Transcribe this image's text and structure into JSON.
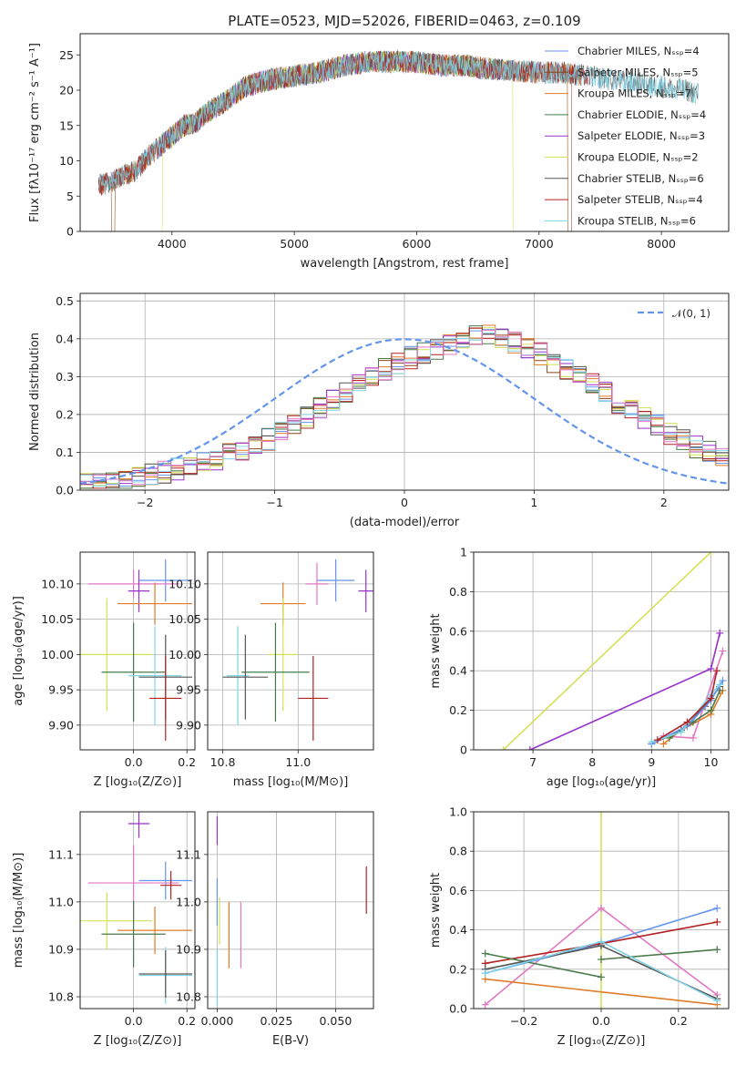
{
  "chart_data": [
    {
      "type": "line",
      "title": "PLATE=0523, MJD=52026, FIBERID=0463, z=0.109",
      "xlabel": "wavelength [Angstrom, rest frame]",
      "ylabel": "Flux [fλ10⁻¹⁷ erg cm⁻² s⁻¹ A⁻¹]",
      "xlim": [
        3250,
        8550
      ],
      "ylim": [
        0,
        28
      ],
      "xticks": [
        4000,
        5000,
        6000,
        7000,
        8000
      ],
      "yticks": [
        0,
        5,
        10,
        15,
        20,
        25
      ],
      "grid": false,
      "legend_position": "upper right",
      "continuum": {
        "x": [
          3400,
          3500,
          3600,
          3700,
          3800,
          3900,
          4000,
          4100,
          4200,
          4300,
          4400,
          4600,
          4800,
          5000,
          5200,
          5400,
          5600,
          5800,
          6000,
          6200,
          6400,
          6600,
          6800,
          7000,
          7200,
          7400,
          7600,
          7800,
          8000,
          8200,
          8300
        ],
        "y": [
          6.5,
          7.0,
          8.0,
          8.5,
          10.5,
          12.0,
          13.5,
          15.0,
          15.5,
          17.0,
          18.0,
          20.5,
          21.5,
          22.0,
          22.5,
          23.5,
          24.0,
          24.0,
          24.0,
          23.5,
          23.5,
          23.0,
          22.8,
          22.5,
          22.5,
          22.0,
          21.5,
          21.0,
          20.5,
          20.0,
          19.5
        ]
      },
      "series": [
        {
          "name": "Chabrier MILES, N_SSP=4",
          "color": "#6495ed",
          "xmin": 3400,
          "xmax": 7350,
          "dips": []
        },
        {
          "name": "Salpeter MILES, N_SSP=5",
          "color": "#8b4513",
          "xmin": 3400,
          "xmax": 7350,
          "dips": [
            {
              "x": 3520,
              "width": 30
            },
            {
              "x": 7250,
              "width": 30
            }
          ]
        },
        {
          "name": "Kroupa MILES, N_SSP=7",
          "color": "#e07b28",
          "xmin": 3400,
          "xmax": 7350,
          "dips": []
        },
        {
          "name": "Chabrier ELODIE, N_SSP=4",
          "color": "#4a7a4a",
          "xmin": 3900,
          "xmax": 6800,
          "dips": []
        },
        {
          "name": "Salpeter ELODIE, N_SSP=3",
          "color": "#9932cc",
          "xmin": 3900,
          "xmax": 6800,
          "dips": []
        },
        {
          "name": "Kroupa ELODIE, N_SSP=2",
          "color": "#d4e157",
          "xmin": 3900,
          "xmax": 6800,
          "dips": [
            {
              "x": 3910,
              "width": 25
            },
            {
              "x": 6800,
              "width": 25
            }
          ]
        },
        {
          "name": "Chabrier STELIB, N_SSP=6",
          "color": "#555555",
          "xmin": 3400,
          "xmax": 8300,
          "dips": []
        },
        {
          "name": "Salpeter STELIB, N_SSP=4",
          "color": "#b22222",
          "xmin": 3400,
          "xmax": 7400,
          "dips": [
            {
              "x": 7420,
              "width": 25
            }
          ]
        },
        {
          "name": "Kroupa STELIB, N_SSP=6",
          "color": "#7fd4e6",
          "xmin": 3400,
          "xmax": 8300,
          "dips": []
        }
      ]
    },
    {
      "type": "step",
      "xlabel": "(data-model)/error",
      "ylabel": "Normed distribution",
      "xlim": [
        -2.5,
        2.5
      ],
      "ylim": [
        0,
        0.52
      ],
      "xticks": [
        -2,
        -1,
        0,
        1,
        2
      ],
      "yticks": [
        0.0,
        0.1,
        0.2,
        0.3,
        0.4,
        0.5
      ],
      "grid": true,
      "reference": {
        "name": "N(0,1)",
        "color": "#6495ed"
      },
      "bin_width": 0.1,
      "bin_start": -2.5,
      "base_counts": [
        0.02,
        0.025,
        0.028,
        0.032,
        0.036,
        0.041,
        0.048,
        0.055,
        0.062,
        0.07,
        0.082,
        0.095,
        0.108,
        0.12,
        0.135,
        0.155,
        0.17,
        0.19,
        0.215,
        0.24,
        0.26,
        0.28,
        0.3,
        0.32,
        0.335,
        0.35,
        0.36,
        0.375,
        0.385,
        0.395,
        0.405,
        0.41,
        0.4,
        0.39,
        0.375,
        0.36,
        0.34,
        0.32,
        0.3,
        0.28,
        0.255,
        0.23,
        0.21,
        0.19,
        0.17,
        0.15,
        0.13,
        0.115,
        0.1,
        0.088
      ],
      "series_colors": [
        "#6495ed",
        "#8b4513",
        "#e07b28",
        "#4a7a4a",
        "#9932cc",
        "#d4e157",
        "#555555",
        "#b22222",
        "#7fd4e6",
        "#e377c2"
      ]
    },
    {
      "type": "errorbar",
      "xlabel": "Z [log₁₀(Z/Z⊙)]",
      "ylabel": "age  [log₁₀(age/yr)]",
      "xlim": [
        -0.2,
        0.23
      ],
      "ylim": [
        9.865,
        10.145
      ],
      "xticks": [
        0.0,
        0.2
      ],
      "yticks": [
        9.9,
        9.95,
        10.0,
        10.05,
        10.1
      ],
      "grid": true,
      "points": [
        {
          "x": 0.12,
          "y": 10.105,
          "ex": 0.1,
          "ey": 0.03,
          "color": "#6495ed"
        },
        {
          "x": 0.0,
          "y": 10.1,
          "ex": 0.17,
          "ey": 0.02,
          "color": "#e377c2"
        },
        {
          "x": 0.02,
          "y": 10.09,
          "ex": 0.04,
          "ey": 0.03,
          "color": "#9932cc"
        },
        {
          "x": 0.08,
          "y": 10.072,
          "ex": 0.14,
          "ey": 0.03,
          "color": "#e07b28"
        },
        {
          "x": -0.1,
          "y": 10.0,
          "ex": 0.17,
          "ey": 0.08,
          "color": "#d4e157"
        },
        {
          "x": 0.0,
          "y": 9.975,
          "ex": 0.12,
          "ey": 0.07,
          "color": "#4a7a4a"
        },
        {
          "x": 0.08,
          "y": 9.97,
          "ex": 0.1,
          "ey": 0.07,
          "color": "#7fd4e6"
        },
        {
          "x": 0.12,
          "y": 9.968,
          "ex": 0.1,
          "ey": 0.06,
          "color": "#555555"
        },
        {
          "x": 0.12,
          "y": 9.938,
          "ex": 0.06,
          "ey": 0.06,
          "color": "#b22222"
        }
      ]
    },
    {
      "type": "errorbar",
      "xlabel": "mass [log₁₀(M/M⊙)]",
      "ylabel": "",
      "xlim": [
        10.76,
        11.2
      ],
      "ylim": [
        9.865,
        10.145
      ],
      "xticks": [
        10.8,
        11.0
      ],
      "yticks": [
        9.9,
        9.95,
        10.0,
        10.05,
        10.1
      ],
      "grid": true,
      "points": [
        {
          "x": 11.1,
          "y": 10.105,
          "ex": 0.05,
          "ey": 0.03,
          "color": "#6495ed"
        },
        {
          "x": 11.18,
          "y": 10.09,
          "ex": 0.02,
          "ey": 0.03,
          "color": "#9932cc"
        },
        {
          "x": 11.05,
          "y": 10.1,
          "ex": 0.03,
          "ey": 0.03,
          "color": "#e377c2"
        },
        {
          "x": 10.96,
          "y": 10.072,
          "ex": 0.06,
          "ey": 0.03,
          "color": "#e07b28"
        },
        {
          "x": 10.96,
          "y": 10.0,
          "ex": 0.04,
          "ey": 0.08,
          "color": "#d4e157"
        },
        {
          "x": 10.94,
          "y": 9.975,
          "ex": 0.09,
          "ey": 0.07,
          "color": "#4a7a4a"
        },
        {
          "x": 10.84,
          "y": 9.97,
          "ex": 0.03,
          "ey": 0.07,
          "color": "#7fd4e6"
        },
        {
          "x": 10.86,
          "y": 9.968,
          "ex": 0.06,
          "ey": 0.06,
          "color": "#555555"
        },
        {
          "x": 11.04,
          "y": 9.938,
          "ex": 0.04,
          "ey": 0.06,
          "color": "#b22222"
        }
      ]
    },
    {
      "type": "line",
      "xlabel": "age  [log₁₀(age/yr)]",
      "ylabel": "mass weight",
      "xlim": [
        6.0,
        10.3
      ],
      "ylim": [
        0.0,
        1.0
      ],
      "xticks": [
        7,
        8,
        9,
        10
      ],
      "yticks": [
        0.0,
        0.2,
        0.4,
        0.6,
        0.8,
        1.0
      ],
      "grid": true,
      "series": [
        {
          "color": "#d4e157",
          "x": [
            6.5,
            10.0
          ],
          "y": [
            0.0,
            1.0
          ]
        },
        {
          "color": "#9932cc",
          "x": [
            6.95,
            10.0,
            10.15
          ],
          "y": [
            0.0,
            0.41,
            0.59
          ]
        },
        {
          "color": "#e377c2",
          "x": [
            9.2,
            9.7,
            10.2
          ],
          "y": [
            0.07,
            0.06,
            0.5
          ]
        },
        {
          "color": "#e07b28",
          "x": [
            9.2,
            9.5,
            10.0,
            10.2
          ],
          "y": [
            0.03,
            0.1,
            0.18,
            0.3
          ]
        },
        {
          "color": "#4a7a4a",
          "x": [
            9.3,
            9.7,
            10.0,
            10.15
          ],
          "y": [
            0.06,
            0.14,
            0.2,
            0.3
          ]
        },
        {
          "color": "#555555",
          "x": [
            9.0,
            9.5,
            9.9,
            10.15
          ],
          "y": [
            0.03,
            0.1,
            0.22,
            0.32
          ]
        },
        {
          "color": "#6495ed",
          "x": [
            9.0,
            9.6,
            10.0,
            10.2
          ],
          "y": [
            0.03,
            0.12,
            0.25,
            0.35
          ]
        },
        {
          "color": "#7fd4e6",
          "x": [
            9.0,
            9.5,
            10.0,
            10.15
          ],
          "y": [
            0.04,
            0.09,
            0.28,
            0.33
          ]
        },
        {
          "color": "#b22222",
          "x": [
            9.1,
            9.6,
            10.0,
            10.1
          ],
          "y": [
            0.05,
            0.14,
            0.26,
            0.4
          ]
        }
      ]
    },
    {
      "type": "errorbar",
      "xlabel": "Z [log₁₀(Z/Z⊙)]",
      "ylabel": "mass [log₁₀(M/M⊙)]",
      "xlim": [
        -0.2,
        0.23
      ],
      "ylim": [
        10.775,
        11.19
      ],
      "xticks": [
        0.0,
        0.2
      ],
      "yticks": [
        10.8,
        10.9,
        11.0,
        11.1
      ],
      "grid": true,
      "points": [
        {
          "x": 0.02,
          "y": 11.165,
          "ex": 0.04,
          "ey": 0.03,
          "color": "#9932cc"
        },
        {
          "x": 0.12,
          "y": 11.045,
          "ex": 0.1,
          "ey": 0.04,
          "color": "#6495ed"
        },
        {
          "x": 0.0,
          "y": 11.04,
          "ex": 0.17,
          "ey": 0.08,
          "color": "#e377c2"
        },
        {
          "x": 0.14,
          "y": 11.035,
          "ex": 0.04,
          "ey": 0.03,
          "color": "#b22222"
        },
        {
          "x": -0.1,
          "y": 10.96,
          "ex": 0.17,
          "ey": 0.06,
          "color": "#d4e157"
        },
        {
          "x": 0.08,
          "y": 10.94,
          "ex": 0.14,
          "ey": 0.05,
          "color": "#e07b28"
        },
        {
          "x": 0.0,
          "y": 10.932,
          "ex": 0.12,
          "ey": 0.07,
          "color": "#4a7a4a"
        },
        {
          "x": 0.12,
          "y": 10.845,
          "ex": 0.1,
          "ey": 0.06,
          "color": "#7fd4e6"
        },
        {
          "x": 0.12,
          "y": 10.848,
          "ex": 0.1,
          "ey": 0.05,
          "color": "#555555"
        }
      ]
    },
    {
      "type": "errorbar",
      "xlabel": "E(B-V)",
      "ylabel": "",
      "xlim": [
        -0.004,
        0.066
      ],
      "ylim": [
        10.775,
        11.19
      ],
      "xticks": [
        0.0,
        0.025,
        0.05
      ],
      "yticks": [
        10.8,
        10.9,
        11.0,
        11.1
      ],
      "grid": true,
      "points": [
        {
          "x": 0.0,
          "y": 11.15,
          "ex": 0.0,
          "ey": 0.03,
          "color": "#9932cc"
        },
        {
          "x": 0.0,
          "y": 11.0,
          "ex": 0.0,
          "ey": 0.05,
          "color": "#6495ed"
        },
        {
          "x": 0.001,
          "y": 10.96,
          "ex": 0.0,
          "ey": 0.05,
          "color": "#d4e157"
        },
        {
          "x": 0.005,
          "y": 10.93,
          "ex": 0.0,
          "ey": 0.07,
          "color": "#e07b28"
        },
        {
          "x": 0.01,
          "y": 10.93,
          "ex": 0.0,
          "ey": 0.07,
          "color": "#e377c2"
        },
        {
          "x": 0.063,
          "y": 11.025,
          "ex": 0.0,
          "ey": 0.05,
          "color": "#b22222"
        },
        {
          "x": 0.0,
          "y": 10.84,
          "ex": 0.0,
          "ey": 0.06,
          "color": "#7fd4e6"
        }
      ]
    },
    {
      "type": "line",
      "xlabel": "Z [log₁₀(Z/Z⊙)]",
      "ylabel": "mass weight",
      "xlim": [
        -0.33,
        0.33
      ],
      "ylim": [
        0.0,
        1.0
      ],
      "xticks": [
        -0.2,
        0.0,
        0.2
      ],
      "yticks": [
        0.0,
        0.2,
        0.4,
        0.6,
        0.8,
        1.0
      ],
      "grid": true,
      "series": [
        {
          "color": "#d4e157",
          "x": [
            0.0,
            0.0
          ],
          "y": [
            0.0,
            1.0
          ]
        },
        {
          "color": "#e377c2",
          "x": [
            -0.3,
            0.0,
            0.3
          ],
          "y": [
            0.02,
            0.51,
            0.07
          ]
        },
        {
          "color": "#6495ed",
          "x": [
            -0.3,
            0.0,
            0.3
          ],
          "y": [
            0.18,
            0.33,
            0.51
          ]
        },
        {
          "color": "#b22222",
          "x": [
            -0.3,
            0.0,
            0.3
          ],
          "y": [
            0.23,
            0.33,
            0.44
          ]
        },
        {
          "color": "#4a7a4a",
          "x": [
            -0.3,
            0.0
          ],
          "y": [
            0.28,
            0.16
          ]
        },
        {
          "color": "#4a7a4a",
          "x": [
            0.0,
            0.3
          ],
          "y": [
            0.25,
            0.3
          ]
        },
        {
          "color": "#e07b28",
          "x": [
            -0.3,
            0.3
          ],
          "y": [
            0.15,
            0.02
          ]
        },
        {
          "color": "#555555",
          "x": [
            -0.3,
            0.0,
            0.3
          ],
          "y": [
            0.2,
            0.32,
            0.05
          ]
        },
        {
          "color": "#7fd4e6",
          "x": [
            -0.3,
            0.0,
            0.3
          ],
          "y": [
            0.18,
            0.34,
            0.04
          ]
        }
      ]
    }
  ]
}
